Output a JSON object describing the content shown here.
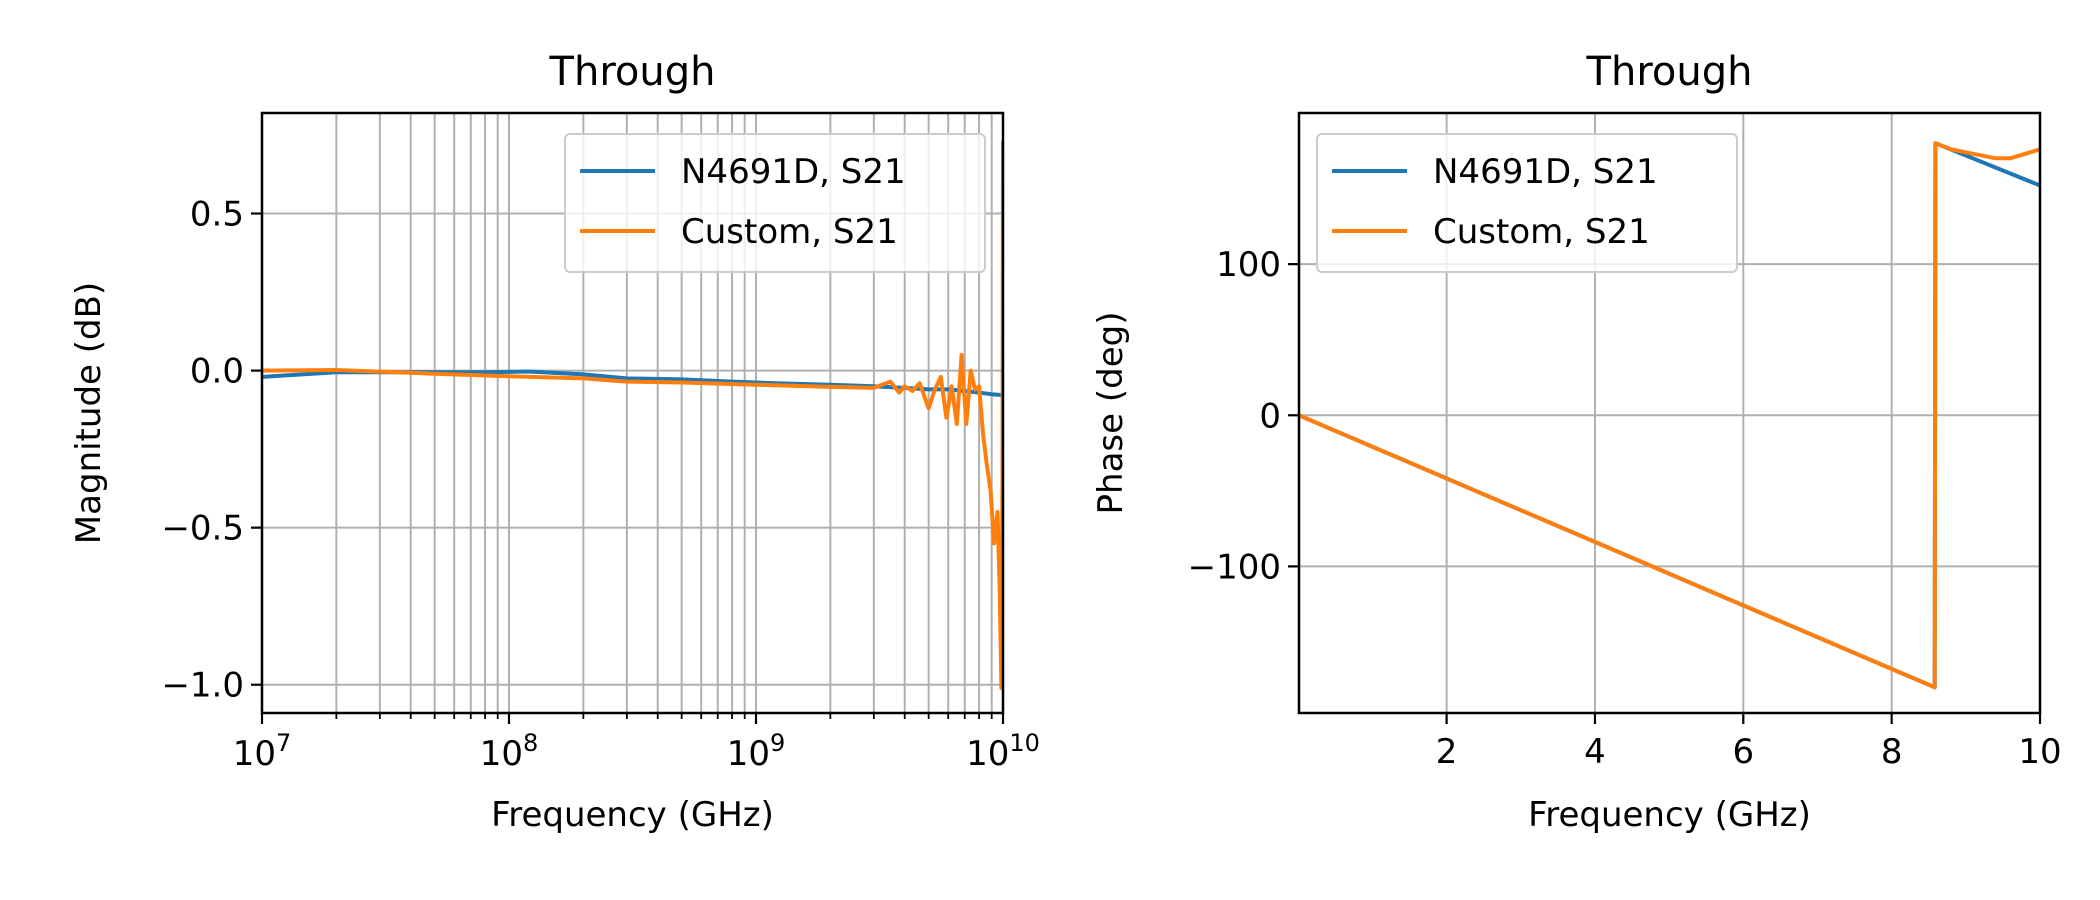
{
  "chart_data": [
    {
      "type": "line",
      "title": "Through",
      "xlabel": "Frequency (GHz)",
      "ylabel": "Magnitude (dB)",
      "xscale": "log",
      "xlim": [
        10000000,
        10000000000
      ],
      "ylim": [
        -1.09,
        0.82
      ],
      "xticks": [
        10000000,
        100000000,
        1000000000,
        10000000000
      ],
      "xtick_labels": [
        {
          "base": "10",
          "exp": "7"
        },
        {
          "base": "10",
          "exp": "8"
        },
        {
          "base": "10",
          "exp": "9"
        },
        {
          "base": "10",
          "exp": "10"
        }
      ],
      "yticks": [
        0.5,
        0.0,
        -0.5,
        -1.0
      ],
      "ytick_labels": [
        "0.5",
        "0.0",
        "−0.5",
        "−1.0"
      ],
      "grid": true,
      "minor_grid_x": true,
      "legend": "top-right",
      "series": [
        {
          "name": "N4691D, S21",
          "color": "#1f77b4",
          "x": [
            10000000,
            20000000,
            50000000,
            80000000,
            120000000,
            200000000,
            300000000,
            500000000,
            800000000,
            1200000000,
            2000000000,
            3000000000,
            4000000000,
            5000000000,
            6000000000,
            7000000000,
            8000000000,
            9000000000,
            10000000000
          ],
          "y": [
            -0.02,
            -0.005,
            -0.005,
            -0.005,
            -0.003,
            -0.012,
            -0.025,
            -0.028,
            -0.035,
            -0.04,
            -0.045,
            -0.05,
            -0.055,
            -0.06,
            -0.06,
            -0.065,
            -0.07,
            -0.075,
            -0.078
          ]
        },
        {
          "name": "Custom, S21",
          "color": "#ff7f0e",
          "x": [
            10000000,
            20000000,
            50000000,
            100000000,
            200000000,
            300000000,
            500000000,
            1000000000,
            2000000000,
            3000000000,
            3500000000,
            3800000000,
            4000000000,
            4300000000,
            4600000000,
            5000000000,
            5300000000,
            5600000000,
            5900000000,
            6200000000,
            6500000000,
            6800000000,
            7100000000,
            7400000000,
            7700000000,
            8000000000,
            8300000000,
            8600000000,
            8900000000,
            9200000000,
            9500000000,
            9700000000,
            9850000000,
            9950000000,
            10000000000
          ],
          "y": [
            0.0,
            0.002,
            -0.01,
            -0.018,
            -0.025,
            -0.035,
            -0.038,
            -0.045,
            -0.052,
            -0.055,
            -0.035,
            -0.07,
            -0.05,
            -0.065,
            -0.04,
            -0.12,
            -0.06,
            -0.02,
            -0.15,
            -0.05,
            -0.17,
            0.05,
            -0.17,
            0.0,
            -0.06,
            -0.05,
            -0.2,
            -0.3,
            -0.38,
            -0.55,
            -0.45,
            -0.7,
            -1.01,
            -0.3,
            0.73
          ]
        }
      ]
    },
    {
      "type": "line",
      "title": "Through",
      "xlabel": "Frequency (GHz)",
      "ylabel": "Phase (deg)",
      "xlim": [
        0.01,
        10
      ],
      "ylim": [
        -197,
        200
      ],
      "xticks": [
        2,
        4,
        6,
        8,
        10
      ],
      "xtick_labels": [
        "2",
        "4",
        "6",
        "8",
        "10"
      ],
      "yticks": [
        100,
        0,
        -100
      ],
      "ytick_labels": [
        "100",
        "0",
        "−100"
      ],
      "grid": true,
      "legend": "top-left",
      "series": [
        {
          "name": "N4691D, S21",
          "color": "#1f77b4",
          "x": [
            0.01,
            8.58,
            8.59,
            10
          ],
          "y": [
            0,
            -180,
            180,
            152
          ]
        },
        {
          "name": "Custom, S21",
          "color": "#ff7f0e",
          "x": [
            0.01,
            8.58,
            8.59,
            8.8,
            9.0,
            9.2,
            9.4,
            9.6,
            9.8,
            10
          ],
          "y": [
            0,
            -180,
            180,
            176,
            174,
            172,
            170,
            170,
            173,
            176
          ]
        }
      ]
    }
  ]
}
